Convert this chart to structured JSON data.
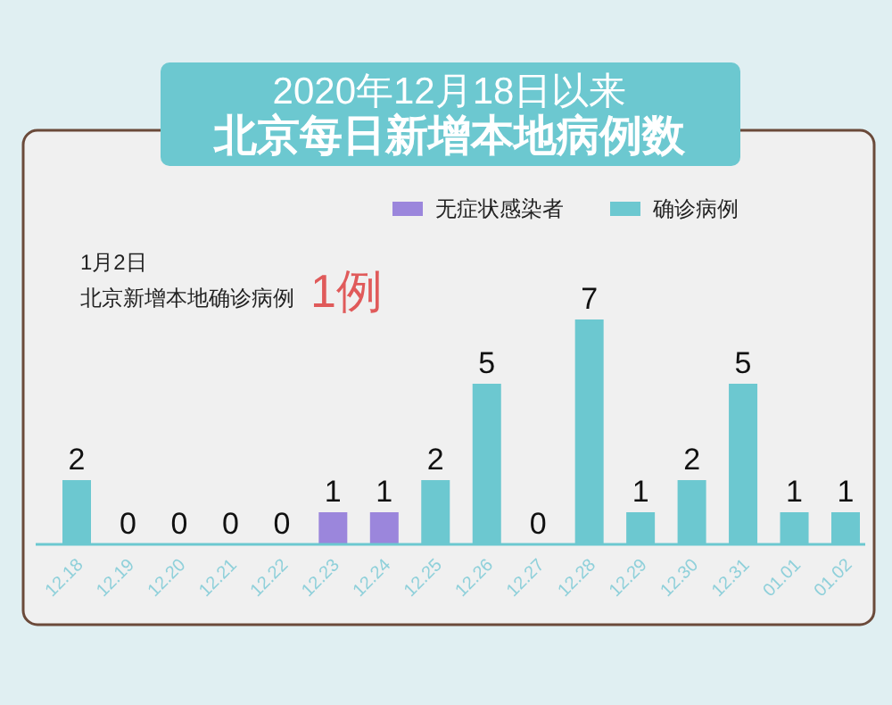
{
  "chart_data": {
    "type": "bar",
    "title": "2020年12月18日以来",
    "subtitle": "北京每日新增本地病例数",
    "categories": [
      "12.18",
      "12.19",
      "12.20",
      "12.21",
      "12.22",
      "12.23",
      "12.24",
      "12.25",
      "12.26",
      "12.27",
      "12.28",
      "12.29",
      "12.30",
      "12.31",
      "01.01",
      "01.02"
    ],
    "series": [
      {
        "name": "无症状感染者",
        "color": "#9b86dc",
        "values": [
          null,
          null,
          null,
          null,
          null,
          1,
          1,
          null,
          null,
          null,
          null,
          null,
          null,
          null,
          null,
          null
        ]
      },
      {
        "name": "确诊病例",
        "color": "#6cc8d0",
        "values": [
          2,
          0,
          0,
          0,
          0,
          null,
          null,
          2,
          5,
          0,
          7,
          1,
          2,
          5,
          1,
          1
        ]
      }
    ],
    "annotations": [
      "1月2日",
      "北京新增本地确诊病例",
      "1例"
    ],
    "data_labels": true,
    "legend": "top right"
  }
}
